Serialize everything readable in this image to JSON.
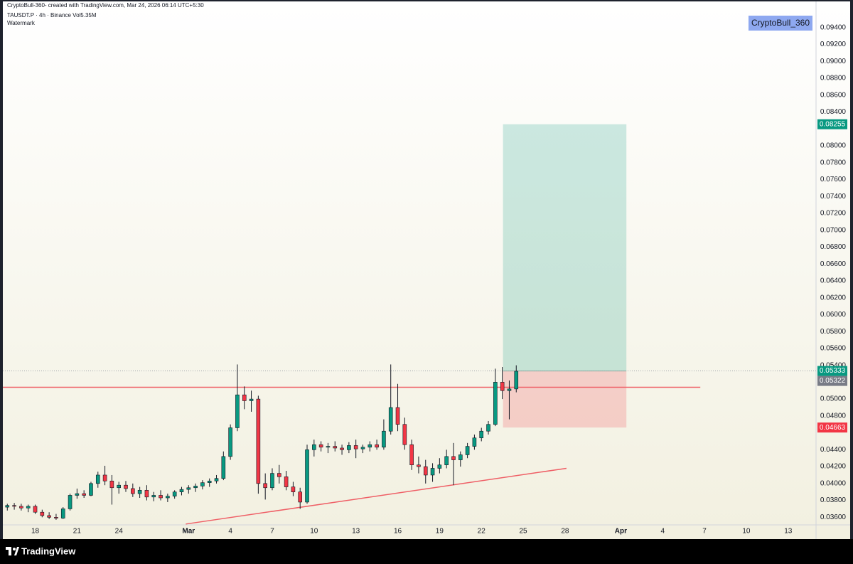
{
  "chart_data": {
    "type": "candlestick",
    "header": [
      "CryptoBull-360- created with TradingView.com, Mar 24, 2026 06:14 UTC+5:30",
      "TAUSDT.P · 4h · Binance  Vol5.35M",
      "Watermark"
    ],
    "watermark": "CryptoBull_360",
    "brand": "TradingView",
    "up_color": "#089981",
    "down_color": "#f23645",
    "grid": false,
    "xlim": [
      46.68,
      105.0
    ],
    "ylim": [
      0.0351,
      0.096
    ],
    "xticks": [
      {
        "value": 49,
        "label": "18"
      },
      {
        "value": 52,
        "label": "21"
      },
      {
        "value": 55,
        "label": "24"
      },
      {
        "value": 60,
        "label": "Mar"
      },
      {
        "value": 63,
        "label": "4"
      },
      {
        "value": 66,
        "label": "7"
      },
      {
        "value": 69,
        "label": "10"
      },
      {
        "value": 72,
        "label": "13"
      },
      {
        "value": 75,
        "label": "16"
      },
      {
        "value": 78,
        "label": "19"
      },
      {
        "value": 81,
        "label": "22"
      },
      {
        "value": 84,
        "label": "25"
      },
      {
        "value": 87,
        "label": "28"
      },
      {
        "value": 91,
        "label": "Apr"
      },
      {
        "value": 94,
        "label": "4"
      },
      {
        "value": 97,
        "label": "7"
      },
      {
        "value": 100,
        "label": "10"
      },
      {
        "value": 103,
        "label": "13"
      }
    ],
    "yticks": [
      {
        "value": 0.094,
        "label": "0.09400"
      },
      {
        "value": 0.092,
        "label": "0.09200"
      },
      {
        "value": 0.09,
        "label": "0.09000"
      },
      {
        "value": 0.088,
        "label": "0.08800"
      },
      {
        "value": 0.086,
        "label": "0.08600"
      },
      {
        "value": 0.084,
        "label": "0.08400"
      },
      {
        "value": 0.08,
        "label": "0.08000"
      },
      {
        "value": 0.078,
        "label": "0.07800"
      },
      {
        "value": 0.076,
        "label": "0.07600"
      },
      {
        "value": 0.074,
        "label": "0.07400"
      },
      {
        "value": 0.072,
        "label": "0.07200"
      },
      {
        "value": 0.07,
        "label": "0.07000"
      },
      {
        "value": 0.068,
        "label": "0.06800"
      },
      {
        "value": 0.066,
        "label": "0.06600"
      },
      {
        "value": 0.064,
        "label": "0.06400"
      },
      {
        "value": 0.062,
        "label": "0.06200"
      },
      {
        "value": 0.06,
        "label": "0.06000"
      },
      {
        "value": 0.058,
        "label": "0.05800"
      },
      {
        "value": 0.056,
        "label": "0.05600"
      },
      {
        "value": 0.054,
        "label": "0.05400"
      },
      {
        "value": 0.05,
        "label": "0.05000"
      },
      {
        "value": 0.048,
        "label": "0.04800"
      },
      {
        "value": 0.044,
        "label": "0.04400"
      },
      {
        "value": 0.042,
        "label": "0.04200"
      },
      {
        "value": 0.04,
        "label": "0.04000"
      },
      {
        "value": 0.038,
        "label": "0.03800"
      },
      {
        "value": 0.036,
        "label": "0.03600"
      }
    ],
    "candles": [
      [
        47,
        0.0372,
        0.0376,
        0.0368,
        0.0374
      ],
      [
        47.5,
        0.0374,
        0.0377,
        0.0369,
        0.0373
      ],
      [
        48,
        0.0373,
        0.0376,
        0.0368,
        0.0371
      ],
      [
        48.5,
        0.0371,
        0.0375,
        0.0366,
        0.0373
      ],
      [
        49,
        0.0373,
        0.0375,
        0.0364,
        0.0366
      ],
      [
        49.5,
        0.0366,
        0.0369,
        0.036,
        0.0362
      ],
      [
        50,
        0.0362,
        0.0366,
        0.0358,
        0.036
      ],
      [
        50.5,
        0.036,
        0.0364,
        0.0357,
        0.0359
      ],
      [
        51,
        0.0359,
        0.0372,
        0.0358,
        0.037
      ],
      [
        51.5,
        0.037,
        0.0388,
        0.0368,
        0.0386
      ],
      [
        52,
        0.0386,
        0.0394,
        0.0382,
        0.0388
      ],
      [
        52.5,
        0.0388,
        0.0392,
        0.0383,
        0.0386
      ],
      [
        53,
        0.0386,
        0.0402,
        0.0385,
        0.04
      ],
      [
        53.5,
        0.04,
        0.0414,
        0.0395,
        0.041
      ],
      [
        54,
        0.041,
        0.0421,
        0.0398,
        0.0403
      ],
      [
        54.5,
        0.0403,
        0.041,
        0.0375,
        0.0395
      ],
      [
        55,
        0.0395,
        0.0402,
        0.0388,
        0.0398
      ],
      [
        55.5,
        0.0398,
        0.0403,
        0.039,
        0.0394
      ],
      [
        56,
        0.0394,
        0.04,
        0.0384,
        0.0388
      ],
      [
        56.5,
        0.0388,
        0.0396,
        0.0383,
        0.0392
      ],
      [
        57,
        0.0392,
        0.0398,
        0.038,
        0.0384
      ],
      [
        57.5,
        0.0384,
        0.039,
        0.0379,
        0.0386
      ],
      [
        58,
        0.0386,
        0.0392,
        0.038,
        0.0383
      ],
      [
        58.5,
        0.0383,
        0.0388,
        0.0378,
        0.0385
      ],
      [
        59,
        0.0385,
        0.0392,
        0.0382,
        0.039
      ],
      [
        59.5,
        0.039,
        0.0396,
        0.0386,
        0.0393
      ],
      [
        60,
        0.0393,
        0.0398,
        0.0388,
        0.0395
      ],
      [
        60.5,
        0.0395,
        0.04,
        0.039,
        0.0397
      ],
      [
        61,
        0.0397,
        0.0404,
        0.0393,
        0.0401
      ],
      [
        61.5,
        0.0401,
        0.0406,
        0.0396,
        0.0403
      ],
      [
        62,
        0.0403,
        0.041,
        0.04,
        0.0406
      ],
      [
        62.5,
        0.0406,
        0.0438,
        0.0404,
        0.0432
      ],
      [
        63,
        0.0432,
        0.047,
        0.0428,
        0.0466
      ],
      [
        63.5,
        0.0466,
        0.0541,
        0.0462,
        0.0505
      ],
      [
        64,
        0.0505,
        0.0515,
        0.0488,
        0.0498
      ],
      [
        64.5,
        0.0498,
        0.051,
        0.0485,
        0.05
      ],
      [
        65,
        0.05,
        0.0504,
        0.0388,
        0.04
      ],
      [
        65.5,
        0.04,
        0.0412,
        0.0381,
        0.0395
      ],
      [
        66,
        0.0395,
        0.0418,
        0.0392,
        0.0412
      ],
      [
        66.5,
        0.0412,
        0.0422,
        0.04,
        0.0408
      ],
      [
        67,
        0.0408,
        0.0415,
        0.0392,
        0.0396
      ],
      [
        67.5,
        0.0396,
        0.0402,
        0.0385,
        0.039
      ],
      [
        68,
        0.039,
        0.0395,
        0.037,
        0.0378
      ],
      [
        68.5,
        0.0378,
        0.0446,
        0.0376,
        0.044
      ],
      [
        69,
        0.044,
        0.0452,
        0.0432,
        0.0446
      ],
      [
        69.5,
        0.0446,
        0.045,
        0.0438,
        0.0443
      ],
      [
        70,
        0.0443,
        0.0448,
        0.0436,
        0.0444
      ],
      [
        70.5,
        0.0444,
        0.045,
        0.0438,
        0.0442
      ],
      [
        71,
        0.0442,
        0.0446,
        0.0434,
        0.044
      ],
      [
        71.5,
        0.044,
        0.0449,
        0.0436,
        0.0445
      ],
      [
        72,
        0.0445,
        0.0452,
        0.043,
        0.0441
      ],
      [
        72.5,
        0.0441,
        0.0446,
        0.0436,
        0.0443
      ],
      [
        73,
        0.0443,
        0.045,
        0.0438,
        0.0446
      ],
      [
        73.5,
        0.0446,
        0.0452,
        0.044,
        0.0443
      ],
      [
        74,
        0.0443,
        0.0476,
        0.044,
        0.0462
      ],
      [
        74.5,
        0.0462,
        0.0541,
        0.0458,
        0.049
      ],
      [
        75,
        0.049,
        0.0518,
        0.0462,
        0.047
      ],
      [
        75.5,
        0.047,
        0.0478,
        0.044,
        0.0446
      ],
      [
        76,
        0.0446,
        0.0452,
        0.0416,
        0.0422
      ],
      [
        76.5,
        0.0422,
        0.0432,
        0.0412,
        0.042
      ],
      [
        77,
        0.042,
        0.0428,
        0.04,
        0.041
      ],
      [
        77.5,
        0.041,
        0.0424,
        0.0402,
        0.0418
      ],
      [
        78,
        0.0418,
        0.043,
        0.0412,
        0.0422
      ],
      [
        78.5,
        0.0422,
        0.044,
        0.0418,
        0.0432
      ],
      [
        79,
        0.0432,
        0.0448,
        0.0398,
        0.0428
      ],
      [
        79.5,
        0.0428,
        0.0438,
        0.042,
        0.0434
      ],
      [
        80,
        0.0434,
        0.0448,
        0.043,
        0.0444
      ],
      [
        80.5,
        0.0444,
        0.0458,
        0.044,
        0.0454
      ],
      [
        81,
        0.0454,
        0.0466,
        0.045,
        0.0462
      ],
      [
        81.5,
        0.0462,
        0.0474,
        0.0458,
        0.047
      ],
      [
        82,
        0.047,
        0.0536,
        0.0468,
        0.052
      ],
      [
        82.5,
        0.052,
        0.0538,
        0.05,
        0.051
      ],
      [
        83,
        0.051,
        0.0522,
        0.0476,
        0.0512
      ],
      [
        83.5,
        0.0512,
        0.054,
        0.0508,
        0.0533
      ]
    ],
    "lines": [
      {
        "color": "#ef5f66",
        "x": [
          46.68,
          96.7
        ],
        "y": [
          0.0514,
          0.0514
        ]
      },
      {
        "color": "#ef5f66",
        "x": [
          59.8,
          87.1
        ],
        "y": [
          0.0352,
          0.0418
        ]
      }
    ],
    "position": {
      "start": 82.55,
      "end": 91.4,
      "target": {
        "value": 0.08255,
        "label": "0.08255",
        "color": "#089981"
      },
      "entry": {
        "value": 0.05333,
        "label": "0.05333",
        "color": "#089981"
      },
      "stop": {
        "value": 0.04663,
        "label": "0.04663",
        "color": "#f23645"
      }
    },
    "last_price": {
      "value": 0.05322,
      "label": "0.05322",
      "color": "#787b86"
    }
  }
}
